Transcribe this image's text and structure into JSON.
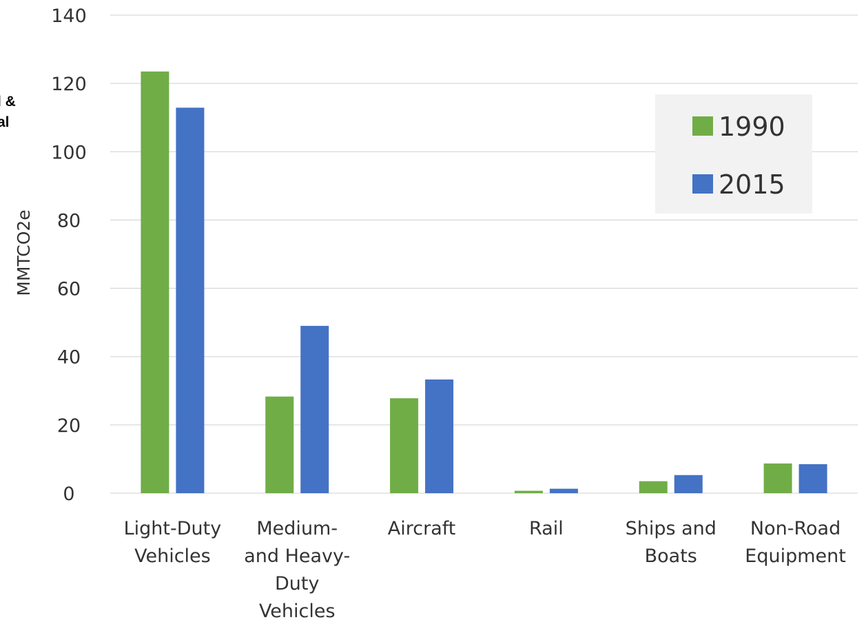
{
  "chart_data": {
    "type": "bar",
    "categories": [
      [
        "Light-Duty",
        "Vehicles"
      ],
      [
        "Medium-",
        "and Heavy-",
        "Duty",
        "Vehicles"
      ],
      [
        "Aircraft"
      ],
      [
        "Rail"
      ],
      [
        "Ships and",
        "Boats"
      ],
      [
        "Non-Road",
        "Equipment"
      ]
    ],
    "series": [
      {
        "name": "1990",
        "color": "#70AD47",
        "values": [
          123.5,
          28.3,
          27.8,
          0.7,
          3.5,
          8.7
        ]
      },
      {
        "name": "2015",
        "color": "#4472C4",
        "values": [
          112.9,
          49.0,
          33.3,
          1.3,
          5.3,
          8.5
        ]
      }
    ],
    "ylabel": "MMTCO2e",
    "xlabel": "",
    "ylim": [
      0,
      140
    ],
    "yticks": [
      0,
      20,
      40,
      60,
      80,
      100,
      120,
      140
    ],
    "grid": true,
    "legend": "top-right",
    "legend_background": "#F2F2F2",
    "gridline_color": "#D9D9D9",
    "clipped_text": [
      "l &",
      "al"
    ]
  }
}
